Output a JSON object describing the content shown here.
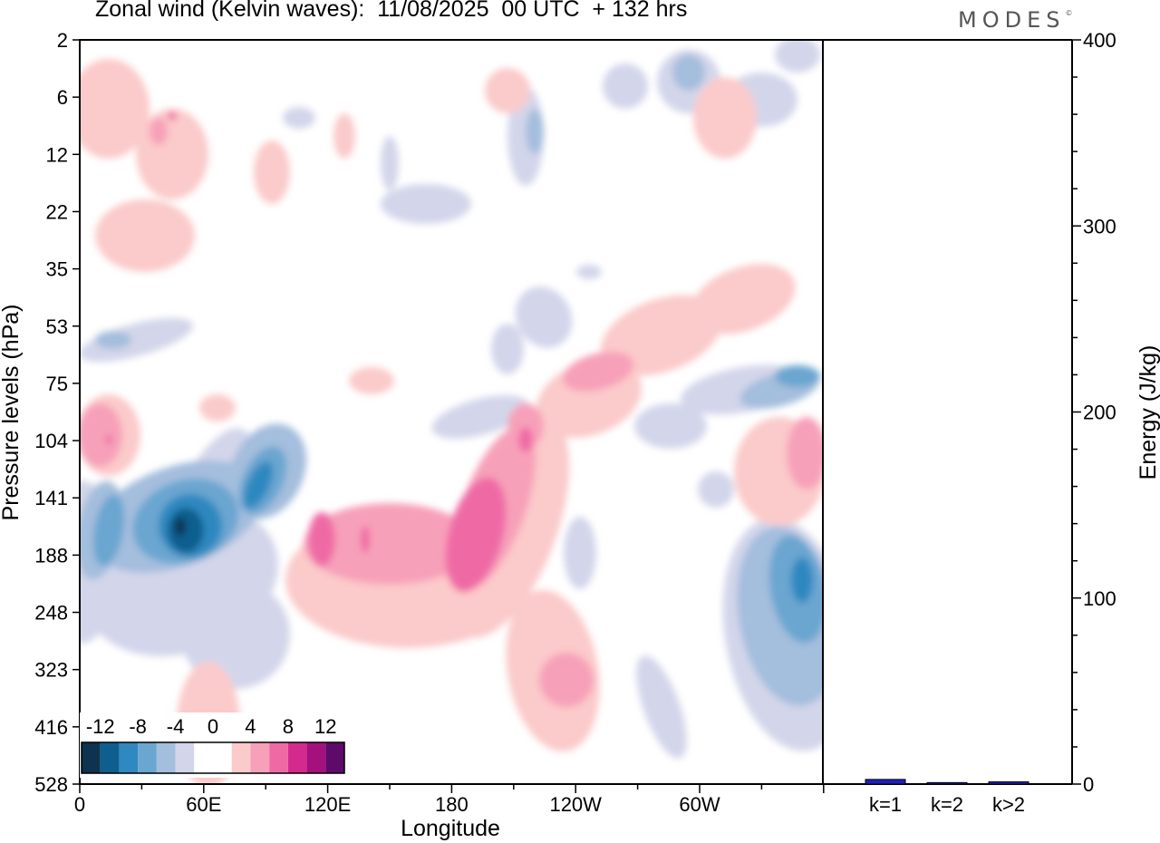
{
  "header": {
    "title": "Zonal wind (Kelvin waves):  11/08/2025  00 UTC  + 132 hrs",
    "brand": "MODES",
    "brand_mark": "©"
  },
  "chart_data": [
    {
      "type": "heatmap",
      "title": "Zonal wind (Kelvin waves):  11/08/2025  00 UTC  + 132 hrs",
      "xlabel": "Longitude",
      "ylabel": "Pressure levels (hPa)",
      "x_ticks": [
        "0",
        "60E",
        "120E",
        "180",
        "120W",
        "60W"
      ],
      "y_ticks": [
        "2",
        "6",
        "12",
        "22",
        "35",
        "53",
        "75",
        "104",
        "141",
        "188",
        "248",
        "323",
        "416",
        "528"
      ],
      "y_scale": "log-pressure (model levels)",
      "colorbar": {
        "labels": [
          "-12",
          "-8",
          "-4",
          "0",
          "4",
          "8",
          "12"
        ],
        "colors": [
          "#0d3350",
          "#0e5f8f",
          "#2f88c0",
          "#6aa6d0",
          "#a4bedd",
          "#d3d6ea",
          "#ffffff",
          "#ffffff",
          "#fbcaca",
          "#f7a0b9",
          "#ef6aa5",
          "#d52a8d",
          "#a5117c",
          "#5e0a6b"
        ]
      },
      "features": [
        {
          "sign": "negative",
          "peak": -13,
          "lon": 45,
          "level_hPa": 150
        },
        {
          "sign": "positive",
          "peak": 8,
          "lon": 180,
          "level_hPa": 180
        },
        {
          "sign": "positive",
          "peak": 6,
          "lon": 120,
          "level_hPa": 170
        },
        {
          "sign": "negative",
          "peak": -10,
          "lon": 355,
          "level_hPa": 200
        },
        {
          "sign": "positive",
          "peak": 6,
          "lon": 0,
          "level_hPa": 105
        },
        {
          "sign": "positive",
          "peak": 5,
          "lon": 235,
          "level_hPa": 360
        }
      ]
    },
    {
      "type": "bar",
      "categories": [
        "k=1",
        "k=2",
        "k>2"
      ],
      "values": [
        2.5,
        0.8,
        1.2
      ],
      "ylabel": "Energy (J/kg)",
      "ylim": [
        0,
        400
      ],
      "y_ticks": [
        "0",
        "100",
        "200",
        "300",
        "400"
      ],
      "bar_color": "#1f1fbf"
    }
  ]
}
